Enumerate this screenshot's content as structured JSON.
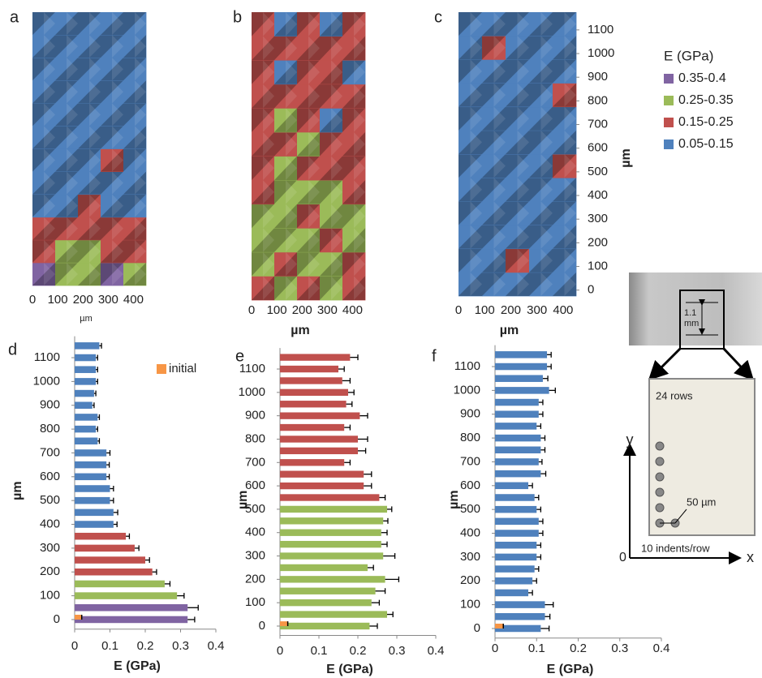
{
  "chart_data": [
    {
      "type": "heatmap",
      "label": "a",
      "xlabel": "µm",
      "xlim": [
        0,
        450
      ],
      "xticks": [
        0,
        100,
        200,
        300,
        400
      ],
      "ylim": [
        -25,
        1175
      ],
      "values": [
        [
          0.37,
          0.3,
          0.3,
          0.37,
          0.3
        ],
        [
          0.2,
          0.3,
          0.3,
          0.2,
          0.2
        ],
        [
          0.2,
          0.2,
          0.2,
          0.2,
          0.2
        ],
        [
          0.1,
          0.1,
          0.2,
          0.1,
          0.1
        ],
        [
          0.1,
          0.1,
          0.1,
          0.1,
          0.1
        ],
        [
          0.1,
          0.1,
          0.1,
          0.2,
          0.1
        ],
        [
          0.1,
          0.1,
          0.1,
          0.1,
          0.1
        ],
        [
          0.1,
          0.1,
          0.1,
          0.1,
          0.1
        ],
        [
          0.1,
          0.1,
          0.1,
          0.1,
          0.1
        ],
        [
          0.1,
          0.1,
          0.1,
          0.1,
          0.1
        ],
        [
          0.1,
          0.1,
          0.1,
          0.1,
          0.1
        ],
        [
          0.1,
          0.1,
          0.1,
          0.1,
          0.1
        ]
      ]
    },
    {
      "type": "heatmap",
      "label": "b",
      "xlabel": "µm",
      "xlim": [
        0,
        450
      ],
      "xticks": [
        0,
        100,
        200,
        300,
        400
      ],
      "ylim": [
        -25,
        1175
      ],
      "values": [
        [
          0.2,
          0.3,
          0.2,
          0.3,
          0.2
        ],
        [
          0.3,
          0.2,
          0.3,
          0.3,
          0.2
        ],
        [
          0.3,
          0.3,
          0.3,
          0.2,
          0.3
        ],
        [
          0.3,
          0.3,
          0.2,
          0.3,
          0.3
        ],
        [
          0.2,
          0.3,
          0.3,
          0.3,
          0.2
        ],
        [
          0.2,
          0.3,
          0.2,
          0.2,
          0.2
        ],
        [
          0.2,
          0.2,
          0.3,
          0.2,
          0.2
        ],
        [
          0.2,
          0.3,
          0.2,
          0.1,
          0.2
        ],
        [
          0.2,
          0.2,
          0.2,
          0.2,
          0.2
        ],
        [
          0.2,
          0.1,
          0.2,
          0.2,
          0.1
        ],
        [
          0.2,
          0.2,
          0.2,
          0.2,
          0.2
        ],
        [
          0.2,
          0.1,
          0.2,
          0.1,
          0.2
        ]
      ]
    },
    {
      "type": "heatmap",
      "label": "c",
      "xlabel": "µm",
      "ylabel": "µm",
      "xlim": [
        0,
        450
      ],
      "xticks": [
        0,
        100,
        200,
        300,
        400
      ],
      "ylim": [
        -25,
        1175
      ],
      "yticks": [
        0,
        100,
        200,
        300,
        400,
        500,
        600,
        700,
        800,
        900,
        1000,
        1100
      ],
      "legend_title": "E (GPa)",
      "legend": [
        {
          "name": "0.35-0.4",
          "color": "#8064a2"
        },
        {
          "name": "0.25-0.35",
          "color": "#9bbb59"
        },
        {
          "name": "0.15-0.25",
          "color": "#c0504d"
        },
        {
          "name": "0.05-0.15",
          "color": "#4f81bd"
        }
      ],
      "values": [
        [
          0.1,
          0.1,
          0.1,
          0.1,
          0.1
        ],
        [
          0.1,
          0.1,
          0.2,
          0.1,
          0.1
        ],
        [
          0.1,
          0.1,
          0.1,
          0.1,
          0.1
        ],
        [
          0.1,
          0.1,
          0.1,
          0.1,
          0.1
        ],
        [
          0.1,
          0.1,
          0.1,
          0.1,
          0.1
        ],
        [
          0.1,
          0.1,
          0.1,
          0.1,
          0.2
        ],
        [
          0.1,
          0.1,
          0.1,
          0.1,
          0.1
        ],
        [
          0.1,
          0.1,
          0.1,
          0.1,
          0.1
        ],
        [
          0.1,
          0.1,
          0.1,
          0.1,
          0.2
        ],
        [
          0.1,
          0.1,
          0.1,
          0.1,
          0.1
        ],
        [
          0.1,
          0.2,
          0.1,
          0.1,
          0.1
        ],
        [
          0.1,
          0.1,
          0.1,
          0.1,
          0.1
        ]
      ]
    },
    {
      "type": "bar",
      "label": "d",
      "xlabel": "E (GPa)",
      "ylabel": "µm",
      "xlim": [
        0,
        0.4
      ],
      "xticks": [
        0,
        0.1,
        0.2,
        0.3,
        0.4
      ],
      "ylim": [
        -40,
        1190
      ],
      "yticks": [
        0,
        100,
        200,
        300,
        400,
        500,
        600,
        700,
        800,
        900,
        1000,
        1100
      ],
      "y": [
        0,
        50,
        100,
        150,
        200,
        250,
        300,
        350,
        400,
        450,
        500,
        550,
        600,
        650,
        700,
        750,
        800,
        850,
        900,
        950,
        1000,
        1050,
        1100,
        1150
      ],
      "series": [
        {
          "values": [
            0.32,
            0.32,
            0.29,
            0.255,
            0.22,
            0.2,
            0.17,
            0.145,
            0.11,
            0.11,
            0.1,
            0.1,
            0.09,
            0.09,
            0.09,
            0.065,
            0.06,
            0.065,
            0.05,
            0.055,
            0.06,
            0.06,
            0.06,
            0.07
          ],
          "errors": [
            0.02,
            0.03,
            0.02,
            0.015,
            0.012,
            0.012,
            0.012,
            0.01,
            0.01,
            0.012,
            0.01,
            0.01,
            0.008,
            0.008,
            0.01,
            0.005,
            0.005,
            0.005,
            0.005,
            0.005,
            0.005,
            0.005,
            0.005,
            0.006
          ],
          "colors": [
            "#8064a2",
            "#8064a2",
            "#9bbb59",
            "#9bbb59",
            "#c0504d",
            "#c0504d",
            "#c0504d",
            "#c0504d",
            "#4f81bd",
            "#4f81bd",
            "#4f81bd",
            "#4f81bd",
            "#4f81bd",
            "#4f81bd",
            "#4f81bd",
            "#4f81bd",
            "#4f81bd",
            "#4f81bd",
            "#4f81bd",
            "#4f81bd",
            "#4f81bd",
            "#4f81bd",
            "#4f81bd",
            "#4f81bd"
          ]
        },
        {
          "name": "initial",
          "color": "#f79646",
          "values": [
            0.02,
            null,
            null,
            null,
            null,
            null,
            null,
            null,
            null,
            null,
            null,
            null,
            null,
            null,
            null,
            null,
            null,
            null,
            null,
            null,
            null,
            null,
            null,
            null
          ]
        }
      ]
    },
    {
      "type": "bar",
      "label": "e",
      "xlabel": "E (GPa)",
      "ylabel": "µm",
      "xlim": [
        0,
        0.4
      ],
      "xticks": [
        0,
        0.1,
        0.2,
        0.3,
        0.4
      ],
      "ylim": [
        -40,
        1190
      ],
      "yticks": [
        0,
        100,
        200,
        300,
        400,
        500,
        600,
        700,
        800,
        900,
        1000,
        1100
      ],
      "y": [
        0,
        50,
        100,
        150,
        200,
        250,
        300,
        350,
        400,
        450,
        500,
        550,
        600,
        650,
        700,
        750,
        800,
        850,
        900,
        950,
        1000,
        1050,
        1100,
        1150
      ],
      "series": [
        {
          "values": [
            0.23,
            0.275,
            0.235,
            0.245,
            0.27,
            0.225,
            0.265,
            0.26,
            0.26,
            0.265,
            0.275,
            0.255,
            0.215,
            0.215,
            0.165,
            0.2,
            0.2,
            0.165,
            0.205,
            0.17,
            0.175,
            0.16,
            0.15,
            0.18
          ],
          "errors": [
            0.02,
            0.015,
            0.02,
            0.025,
            0.035,
            0.015,
            0.03,
            0.015,
            0.015,
            0.012,
            0.012,
            0.015,
            0.02,
            0.02,
            0.015,
            0.02,
            0.025,
            0.015,
            0.02,
            0.015,
            0.015,
            0.02,
            0.015,
            0.02
          ],
          "colors": [
            "#9bbb59",
            "#9bbb59",
            "#9bbb59",
            "#9bbb59",
            "#9bbb59",
            "#9bbb59",
            "#9bbb59",
            "#9bbb59",
            "#9bbb59",
            "#9bbb59",
            "#9bbb59",
            "#c0504d",
            "#c0504d",
            "#c0504d",
            "#c0504d",
            "#c0504d",
            "#c0504d",
            "#c0504d",
            "#c0504d",
            "#c0504d",
            "#c0504d",
            "#c0504d",
            "#c0504d",
            "#c0504d"
          ]
        },
        {
          "color": "#f79646",
          "values": [
            0.02,
            null,
            null,
            null,
            null,
            null,
            null,
            null,
            null,
            null,
            null,
            null,
            null,
            null,
            null,
            null,
            null,
            null,
            null,
            null,
            null,
            null,
            null,
            null
          ]
        }
      ]
    },
    {
      "type": "bar",
      "label": "f",
      "xlabel": "E (GPa)",
      "ylabel": "µm",
      "xlim": [
        0,
        0.4
      ],
      "xticks": [
        0,
        0.1,
        0.2,
        0.3,
        0.4
      ],
      "ylim": [
        -40,
        1190
      ],
      "yticks": [
        0,
        100,
        200,
        300,
        400,
        500,
        600,
        700,
        800,
        900,
        1000,
        1100
      ],
      "y": [
        0,
        50,
        100,
        150,
        200,
        250,
        300,
        350,
        400,
        450,
        500,
        550,
        600,
        650,
        700,
        750,
        800,
        850,
        900,
        950,
        1000,
        1050,
        1100,
        1150
      ],
      "series": [
        {
          "values": [
            0.11,
            0.12,
            0.12,
            0.08,
            0.09,
            0.095,
            0.1,
            0.1,
            0.105,
            0.105,
            0.1,
            0.095,
            0.08,
            0.11,
            0.105,
            0.11,
            0.11,
            0.1,
            0.105,
            0.105,
            0.13,
            0.115,
            0.125,
            0.125
          ],
          "errors": [
            0.02,
            0.012,
            0.02,
            0.01,
            0.01,
            0.01,
            0.01,
            0.01,
            0.01,
            0.01,
            0.01,
            0.01,
            0.01,
            0.012,
            0.008,
            0.01,
            0.01,
            0.01,
            0.01,
            0.01,
            0.015,
            0.012,
            0.01,
            0.01
          ],
          "colors": [
            "#4f81bd",
            "#4f81bd",
            "#4f81bd",
            "#4f81bd",
            "#4f81bd",
            "#4f81bd",
            "#4f81bd",
            "#4f81bd",
            "#4f81bd",
            "#4f81bd",
            "#4f81bd",
            "#4f81bd",
            "#4f81bd",
            "#4f81bd",
            "#4f81bd",
            "#4f81bd",
            "#4f81bd",
            "#4f81bd",
            "#4f81bd",
            "#4f81bd",
            "#4f81bd",
            "#4f81bd",
            "#4f81bd",
            "#4f81bd"
          ]
        },
        {
          "color": "#f79646",
          "values": [
            0.02,
            null,
            null,
            null,
            null,
            null,
            null,
            null,
            null,
            null,
            null,
            null,
            null,
            null,
            null,
            null,
            null,
            null,
            null,
            null,
            null,
            null,
            null,
            null
          ]
        }
      ]
    }
  ],
  "inset": {
    "size_label": [
      "1.1",
      "mm"
    ],
    "rows_label": "24 rows",
    "spacing_label": "50 µm",
    "indents_label": "10 indents/row",
    "origin_label": "0",
    "x_axis_label": "x",
    "y_axis_label": "y"
  }
}
